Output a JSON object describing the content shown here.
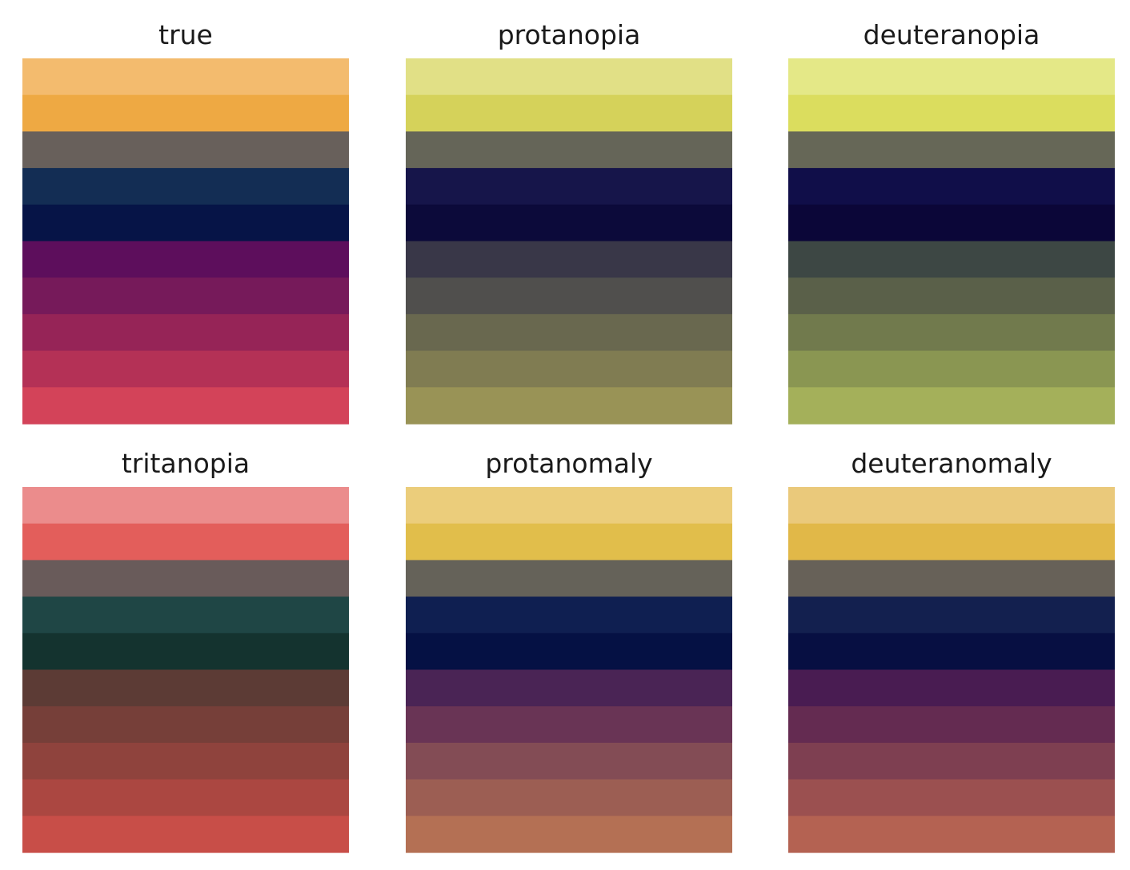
{
  "chart_data": [
    {
      "type": "heatmap",
      "title": "true",
      "colors": [
        "#f3bb6e",
        "#eea943",
        "#68605b",
        "#132d54",
        "#061447",
        "#5d0e5c",
        "#761a5a",
        "#962457",
        "#b43156",
        "#d34359"
      ]
    },
    {
      "type": "heatmap",
      "title": "protanopia",
      "colors": [
        "#e1e086",
        "#d5d25a",
        "#656558",
        "#16154a",
        "#0c0a3a",
        "#393748",
        "#504f4d",
        "#69684f",
        "#807c52",
        "#999356"
      ]
    },
    {
      "type": "heatmap",
      "title": "deuteranopia",
      "colors": [
        "#e4e887",
        "#dbdd5e",
        "#666757",
        "#100e49",
        "#0b0638",
        "#3d4744",
        "#5a6049",
        "#717a4d",
        "#8a9652",
        "#a4b05a"
      ]
    },
    {
      "type": "heatmap",
      "title": "tritanopia",
      "colors": [
        "#eb8c8c",
        "#e35e5b",
        "#695b5a",
        "#1f4645",
        "#14332f",
        "#5c3b35",
        "#763f39",
        "#8f433d",
        "#ab4741",
        "#c84e48"
      ]
    },
    {
      "type": "heatmap",
      "title": "protanomaly",
      "colors": [
        "#ebcd7b",
        "#e1be4b",
        "#656259",
        "#0f1f51",
        "#051144",
        "#4a2455",
        "#693455",
        "#834c55",
        "#9c5e53",
        "#b47054"
      ]
    },
    {
      "type": "heatmap",
      "title": "deuteranomaly",
      "colors": [
        "#eac97b",
        "#e1b848",
        "#676158",
        "#13204f",
        "#070f42",
        "#491c52",
        "#642b51",
        "#7e3f51",
        "#9b5050",
        "#b46252"
      ]
    }
  ]
}
